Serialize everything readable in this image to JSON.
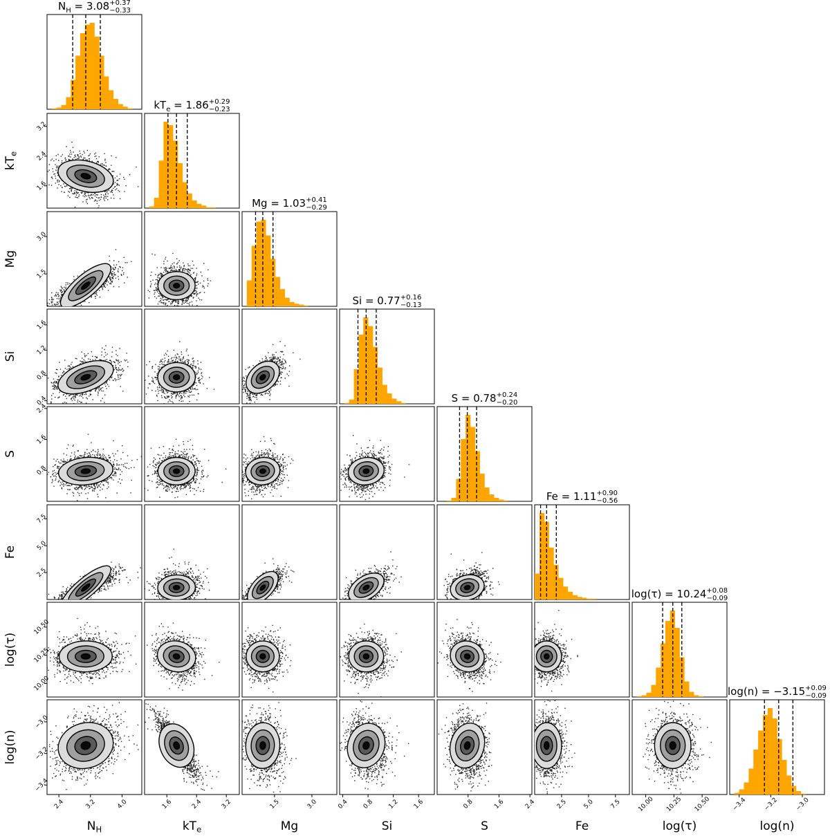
{
  "chart_data": {
    "type": "corner",
    "parameters": [
      {
        "key": "nh",
        "label": "N",
        "label_sub": "H",
        "range": [
          2.1,
          4.5
        ],
        "ticks": [
          2.4,
          3.2,
          4.0
        ],
        "tick_labels": [
          "2.4",
          "3.2",
          "4.0"
        ],
        "median": 3.08,
        "plus": "0.37",
        "minus": "0.33",
        "title_value": "3.08",
        "q_lines": [
          2.75,
          3.08,
          3.45
        ],
        "hist": [
          0,
          1,
          2,
          5,
          14,
          34,
          62,
          88,
          98,
          100,
          84,
          62,
          38,
          22,
          12,
          6,
          3,
          1,
          0,
          0
        ]
      },
      {
        "key": "kte",
        "label": "kT",
        "label_sub": "e",
        "range": [
          1.0,
          3.55
        ],
        "ticks": [
          1.6,
          2.4,
          3.2
        ],
        "tick_labels": [
          "1.6",
          "2.4",
          "3.2"
        ],
        "median": 1.86,
        "plus": "0.29",
        "minus": "0.23",
        "title_value": "1.86",
        "q_lines": [
          1.63,
          1.86,
          2.15
        ],
        "hist": [
          0,
          2,
          12,
          55,
          100,
          96,
          78,
          52,
          30,
          17,
          9,
          5,
          3,
          1,
          1,
          0,
          0,
          0,
          0,
          0
        ]
      },
      {
        "key": "mg",
        "label": "Mg",
        "label_sub": "",
        "range": [
          0.2,
          4.0
        ],
        "ticks": [
          1.5,
          3.0
        ],
        "tick_labels": [
          "1.5",
          "3.0"
        ],
        "median": 1.03,
        "plus": "0.41",
        "minus": "0.29",
        "title_value": "1.03",
        "q_lines": [
          0.74,
          1.03,
          1.44
        ],
        "hist": [
          0,
          30,
          70,
          98,
          100,
          82,
          55,
          34,
          20,
          10,
          5,
          3,
          2,
          1,
          0,
          0,
          0,
          0,
          0,
          0
        ]
      },
      {
        "key": "si",
        "label": "Si",
        "label_sub": "",
        "range": [
          0.35,
          1.85
        ],
        "ticks": [
          0.4,
          0.8,
          1.2,
          1.6
        ],
        "tick_labels": [
          "0.4",
          "0.8",
          "1.2",
          "1.6"
        ],
        "median": 0.77,
        "plus": "0.16",
        "minus": "0.13",
        "title_value": "0.77",
        "q_lines": [
          0.64,
          0.77,
          0.93
        ],
        "hist": [
          0,
          1,
          5,
          40,
          80,
          100,
          90,
          66,
          42,
          22,
          12,
          6,
          3,
          1,
          0,
          0,
          0,
          0,
          0,
          0
        ]
      },
      {
        "key": "s",
        "label": "S",
        "label_sub": "",
        "range": [
          0.0,
          2.45
        ],
        "ticks": [
          0.8,
          1.6,
          2.4
        ],
        "tick_labels": [
          "0.8",
          "1.6",
          "2.4"
        ],
        "median": 0.78,
        "plus": "0.24",
        "minus": "0.20",
        "title_value": "0.78",
        "q_lines": [
          0.58,
          0.78,
          1.02
        ],
        "hist": [
          0,
          0,
          1,
          4,
          26,
          72,
          100,
          86,
          58,
          32,
          16,
          8,
          4,
          2,
          1,
          0,
          0,
          0,
          0,
          0
        ]
      },
      {
        "key": "fe",
        "label": "Fe",
        "label_sub": "",
        "range": [
          0.0,
          8.8
        ],
        "ticks": [
          2.5,
          5.0,
          7.5
        ],
        "tick_labels": [
          "2.5",
          "5.0",
          "7.5"
        ],
        "median": 1.11,
        "plus": "0.90",
        "minus": "0.56",
        "title_value": "1.11",
        "q_lines": [
          0.55,
          1.11,
          2.01
        ],
        "hist": [
          30,
          100,
          90,
          60,
          40,
          25,
          15,
          9,
          5,
          3,
          2,
          1,
          1,
          0,
          0,
          0,
          0,
          0,
          0,
          0
        ]
      },
      {
        "key": "logtau",
        "label": "log(τ)",
        "label_sub": "",
        "range": [
          9.88,
          10.72
        ],
        "ticks": [
          10.0,
          10.25,
          10.5
        ],
        "tick_labels": [
          "10.00",
          "10.25",
          "10.50"
        ],
        "median": 10.24,
        "plus": "0.08",
        "minus": "0.09",
        "title_value": "10.24",
        "q_lines": [
          10.15,
          10.24,
          10.32
        ],
        "hist": [
          0,
          1,
          2,
          5,
          14,
          34,
          62,
          88,
          100,
          80,
          46,
          18,
          6,
          2,
          1,
          0,
          0,
          0,
          0,
          0
        ]
      },
      {
        "key": "logn",
        "label": "log(n)",
        "label_sub": "",
        "range": [
          -3.46,
          -2.86
        ],
        "ticks": [
          -3.4,
          -3.2,
          -3.0
        ],
        "tick_labels": [
          "−3.4",
          "−3.2",
          "−3.0"
        ],
        "median": -3.15,
        "plus": "0.09",
        "minus": "0.09",
        "title_value": "−3.15",
        "q_lines": [
          -3.24,
          -3.15,
          -3.06
        ],
        "hist": [
          0,
          2,
          6,
          14,
          30,
          52,
          74,
          92,
          100,
          88,
          64,
          40,
          22,
          10,
          4,
          1,
          0,
          0,
          0,
          0
        ]
      }
    ],
    "title_format": "{label} = {value}",
    "histogram_color": "#ffa500",
    "contour_fills": [
      "#dcdcdc",
      "#a0a0a0",
      "#5a5a5a",
      "#0a0a0a"
    ],
    "scatter_color": "#000000",
    "contour_levels": 4,
    "grid": false,
    "legend": "none"
  }
}
